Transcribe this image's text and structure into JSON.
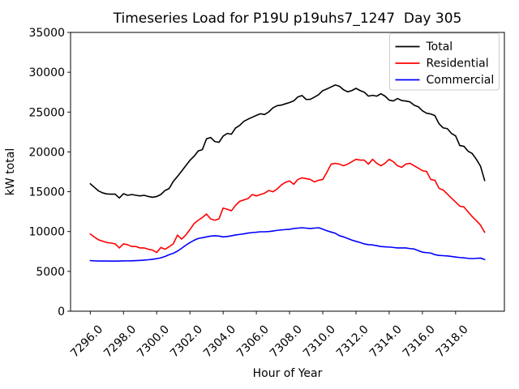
{
  "window": {
    "background": "#ffffff"
  },
  "chart_data": {
    "type": "line",
    "title": "Timeseries Load for P19U p19uhs7_1247  Day 305",
    "xlabel": "Hour of Year",
    "ylabel": "kW total",
    "xlim": [
      7294.8125,
      7320.9375
    ],
    "ylim": [
      0,
      35000
    ],
    "grid": false,
    "legend_position": "upper right",
    "x_ticks": [
      7296,
      7298,
      7300,
      7302,
      7304,
      7306,
      7308,
      7310,
      7312,
      7314,
      7316,
      7318
    ],
    "x_tick_labels": [
      "7296.0",
      "7298.0",
      "7300.0",
      "7302.0",
      "7304.0",
      "7306.0",
      "7308.0",
      "7310.0",
      "7312.0",
      "7314.0",
      "7316.0",
      "7318.0"
    ],
    "y_ticks": [
      0,
      5000,
      10000,
      15000,
      20000,
      25000,
      30000,
      35000
    ],
    "y_tick_labels": [
      "0",
      "5000",
      "10000",
      "15000",
      "20000",
      "25000",
      "30000",
      "35000"
    ],
    "x_start": 7296.0,
    "x_step": 0.25,
    "series": [
      {
        "name": "Total",
        "color": "#000000",
        "values": [
          16000,
          15550,
          15100,
          14850,
          14720,
          14700,
          14700,
          14210,
          14750,
          14550,
          14650,
          14550,
          14480,
          14550,
          14400,
          14300,
          14400,
          14650,
          15150,
          15400,
          16300,
          16910,
          17580,
          18260,
          18940,
          19450,
          20120,
          20290,
          21640,
          21810,
          21300,
          21200,
          21980,
          22320,
          22220,
          23000,
          23330,
          23840,
          24110,
          24350,
          24580,
          24790,
          24690,
          25030,
          25530,
          25800,
          25870,
          26040,
          26200,
          26400,
          26900,
          27080,
          26580,
          26600,
          26880,
          27180,
          27690,
          27900,
          28150,
          28400,
          28250,
          27800,
          27540,
          27700,
          27980,
          27700,
          27500,
          27000,
          27100,
          27000,
          27300,
          27000,
          26500,
          26400,
          26700,
          26450,
          26380,
          26280,
          25870,
          25670,
          25160,
          24860,
          24760,
          24560,
          23530,
          23020,
          22920,
          22320,
          22010,
          20800,
          20700,
          20090,
          19790,
          19070,
          18200,
          16400
        ]
      },
      {
        "name": "Residential",
        "color": "#ff0000",
        "values": [
          9700,
          9300,
          8960,
          8790,
          8620,
          8560,
          8450,
          7940,
          8450,
          8350,
          8120,
          8120,
          7940,
          7940,
          7780,
          7670,
          7370,
          8000,
          7780,
          8100,
          8460,
          9560,
          9050,
          9560,
          10240,
          11000,
          11420,
          11760,
          12200,
          11590,
          11420,
          11590,
          12950,
          12790,
          12610,
          13290,
          13800,
          13970,
          14140,
          14650,
          14480,
          14650,
          14820,
          15160,
          14990,
          15330,
          15840,
          16180,
          16350,
          15930,
          16540,
          16740,
          16640,
          16540,
          16230,
          16440,
          16540,
          17450,
          18460,
          18570,
          18460,
          18260,
          18460,
          18770,
          19070,
          18970,
          18970,
          18460,
          19070,
          18570,
          18260,
          18570,
          19070,
          18770,
          18260,
          18060,
          18460,
          18570,
          18260,
          17960,
          17650,
          17550,
          16540,
          16440,
          15420,
          15220,
          14710,
          14200,
          13700,
          13190,
          13090,
          12480,
          11870,
          11360,
          10800,
          9900
        ]
      },
      {
        "name": "Commercial",
        "color": "#0000ff",
        "values": [
          6350,
          6320,
          6300,
          6300,
          6300,
          6290,
          6290,
          6300,
          6310,
          6320,
          6330,
          6350,
          6380,
          6420,
          6460,
          6520,
          6590,
          6700,
          6870,
          7100,
          7270,
          7540,
          7900,
          8280,
          8620,
          8900,
          9130,
          9230,
          9330,
          9430,
          9470,
          9430,
          9330,
          9380,
          9470,
          9570,
          9640,
          9710,
          9810,
          9870,
          9910,
          9970,
          9970,
          10000,
          10070,
          10150,
          10200,
          10250,
          10280,
          10380,
          10430,
          10480,
          10430,
          10380,
          10430,
          10480,
          10300,
          10100,
          9940,
          9790,
          9480,
          9330,
          9130,
          8930,
          8770,
          8620,
          8450,
          8350,
          8320,
          8220,
          8120,
          8080,
          8050,
          8000,
          7940,
          7940,
          7940,
          7860,
          7810,
          7610,
          7410,
          7350,
          7300,
          7100,
          7000,
          6970,
          6940,
          6870,
          6800,
          6740,
          6700,
          6640,
          6600,
          6640,
          6670,
          6490
        ]
      }
    ],
    "legend_border_color": "#cccccc",
    "axes_color": "#000000"
  }
}
